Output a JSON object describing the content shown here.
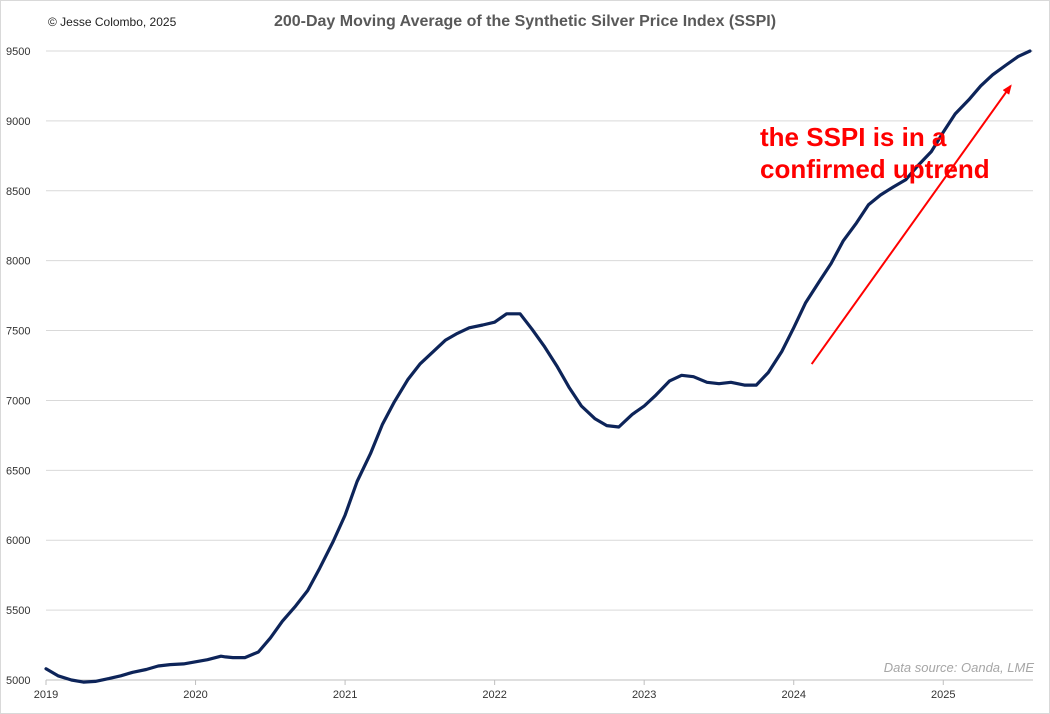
{
  "copyright": "© Jesse Colombo, 2025",
  "chart_data": {
    "type": "line",
    "title": "200-Day Moving Average of the Synthetic Silver Price Index (SSPI)",
    "xlabel": "",
    "ylabel": "",
    "ylim": [
      5000,
      9500
    ],
    "xlim": [
      2019.0,
      2025.6
    ],
    "yticks": [
      5000,
      5500,
      6000,
      6500,
      7000,
      7500,
      8000,
      8500,
      9000,
      9500
    ],
    "xticks": [
      "2019",
      "2020",
      "2021",
      "2022",
      "2023",
      "2024",
      "2025"
    ],
    "grid": "horizontal",
    "legend": "none",
    "series": [
      {
        "color": "#0d2459",
        "x": [
          2019.0,
          2019.08,
          2019.17,
          2019.25,
          2019.33,
          2019.42,
          2019.5,
          2019.58,
          2019.67,
          2019.75,
          2019.83,
          2019.92,
          2020.0,
          2020.08,
          2020.17,
          2020.2,
          2020.25,
          2020.33,
          2020.42,
          2020.5,
          2020.58,
          2020.67,
          2020.75,
          2020.83,
          2020.92,
          2021.0,
          2021.08,
          2021.17,
          2021.25,
          2021.33,
          2021.42,
          2021.5,
          2021.58,
          2021.67,
          2021.75,
          2021.83,
          2021.92,
          2022.0,
          2022.08,
          2022.17,
          2022.25,
          2022.33,
          2022.42,
          2022.5,
          2022.58,
          2022.67,
          2022.75,
          2022.83,
          2022.92,
          2023.0,
          2023.08,
          2023.17,
          2023.25,
          2023.33,
          2023.42,
          2023.5,
          2023.58,
          2023.67,
          2023.75,
          2023.83,
          2023.92,
          2024.0,
          2024.08,
          2024.17,
          2024.25,
          2024.33,
          2024.42,
          2024.5,
          2024.58,
          2024.67,
          2024.75,
          2024.83,
          2024.92,
          2025.0,
          2025.08,
          2025.17,
          2025.25,
          2025.33,
          2025.42,
          2025.5,
          2025.58
        ],
        "y": [
          5080,
          5030,
          5000,
          4985,
          4990,
          5010,
          5030,
          5055,
          5075,
          5100,
          5110,
          5115,
          5130,
          5145,
          5170,
          5165,
          5160,
          5160,
          5200,
          5300,
          5420,
          5530,
          5640,
          5800,
          5990,
          6180,
          6420,
          6620,
          6830,
          6990,
          7150,
          7260,
          7340,
          7430,
          7480,
          7520,
          7540,
          7560,
          7620,
          7620,
          7510,
          7390,
          7240,
          7090,
          6960,
          6870,
          6820,
          6810,
          6900,
          6960,
          7040,
          7140,
          7180,
          7170,
          7130,
          7120,
          7130,
          7110,
          7110,
          7200,
          7350,
          7520,
          7700,
          7850,
          7980,
          8140,
          8270,
          8400,
          8470,
          8530,
          8580,
          8680,
          8780,
          8920,
          9050,
          9150,
          9250,
          9330,
          9400,
          9460,
          9500
        ]
      }
    ],
    "annotation": {
      "text": "the SSPI is in a confirmed uptrend",
      "color": "#ff0000",
      "arrow_from": [
        2024.12,
        7260
      ],
      "arrow_to": [
        2025.45,
        9250
      ]
    },
    "source_note": "Data source: Oanda, LME"
  }
}
